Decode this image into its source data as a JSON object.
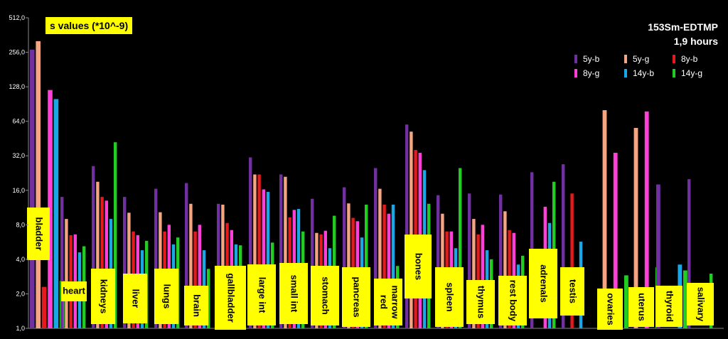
{
  "chart_data": {
    "type": "bar",
    "title": "s values (*10^-9)",
    "subtitle_line1": "153Sm-EDTMP",
    "subtitle_line2": "1,9 hours",
    "yscale": "log2",
    "ylim": [
      1,
      512
    ],
    "yticks": [
      "1,0",
      "2,0",
      "4,0",
      "8,0",
      "16,0",
      "32,0",
      "64,0",
      "128,0",
      "256,0",
      "512,0"
    ],
    "legend_position": "top-right",
    "series": [
      {
        "name": "5y-b",
        "color": "#7030a0"
      },
      {
        "name": "5y-g",
        "color": "#f4a582"
      },
      {
        "name": "8y-b",
        "color": "#e41a1c"
      },
      {
        "name": "8y-g",
        "color": "#ff3fd8"
      },
      {
        "name": "14y-b",
        "color": "#1aa7e6"
      },
      {
        "name": "14y-g",
        "color": "#22cc22"
      }
    ],
    "categories": [
      {
        "label": "bladder",
        "values": [
          270,
          320,
          2.3,
          120,
          100,
          2.6
        ]
      },
      {
        "label": "heart",
        "values": [
          14,
          9,
          6.5,
          6.6,
          4.6,
          5.2
        ]
      },
      {
        "label": "kidneys",
        "values": [
          26,
          19,
          14,
          13,
          9,
          42
        ]
      },
      {
        "label": "liver",
        "values": [
          14,
          10.2,
          7,
          6.5,
          4.8,
          5.8
        ]
      },
      {
        "label": "lungs",
        "values": [
          16.5,
          10.3,
          7,
          8,
          5.4,
          6.2
        ]
      },
      {
        "label": "brain",
        "values": [
          18.5,
          12.2,
          7,
          8,
          4.8,
          3.3
        ]
      },
      {
        "label": "gallbladder",
        "values": [
          12.2,
          12,
          8.3,
          7.2,
          5.4,
          5.3
        ]
      },
      {
        "label": "large int",
        "values": [
          31,
          22,
          22,
          16.3,
          15.5,
          5.6
        ]
      },
      {
        "label": "small int",
        "values": [
          22,
          21,
          9.3,
          10.8,
          11,
          7
        ]
      },
      {
        "label": "stomach",
        "values": [
          13.5,
          6.8,
          6.6,
          7.1,
          5,
          9.6
        ]
      },
      {
        "label": "pancreas",
        "values": [
          17,
          12.3,
          9.2,
          8.6,
          6.2,
          12
        ]
      },
      {
        "label": "red marrow",
        "values": [
          25,
          16.5,
          12,
          10,
          12,
          3.5
        ]
      },
      {
        "label": "bones",
        "values": [
          60,
          52,
          36,
          34,
          24,
          12.2
        ]
      },
      {
        "label": "spleen",
        "values": [
          14.5,
          10,
          7,
          7,
          5,
          25
        ]
      },
      {
        "label": "thymus",
        "values": [
          15,
          9,
          6.6,
          8,
          4.8,
          4
        ]
      },
      {
        "label": "rest body",
        "values": [
          14.7,
          10.5,
          7.2,
          6.8,
          3.6,
          4.3
        ]
      },
      {
        "label": "adrenals",
        "values": [
          23,
          0,
          0,
          11.5,
          8.3,
          19
        ]
      },
      {
        "label": "testis",
        "values": [
          27,
          0,
          15,
          0,
          5.7,
          0
        ]
      },
      {
        "label": "ovaries",
        "values": [
          0,
          80,
          0,
          34,
          0,
          2.9
        ]
      },
      {
        "label": "uterus",
        "values": [
          0,
          56,
          0,
          78,
          0,
          3.4
        ]
      },
      {
        "label": "thyroid",
        "values": [
          18,
          0,
          0,
          0,
          3.6,
          3.2
        ]
      },
      {
        "label": "salivary",
        "values": [
          20,
          0,
          0,
          0,
          0,
          3
        ]
      }
    ]
  }
}
